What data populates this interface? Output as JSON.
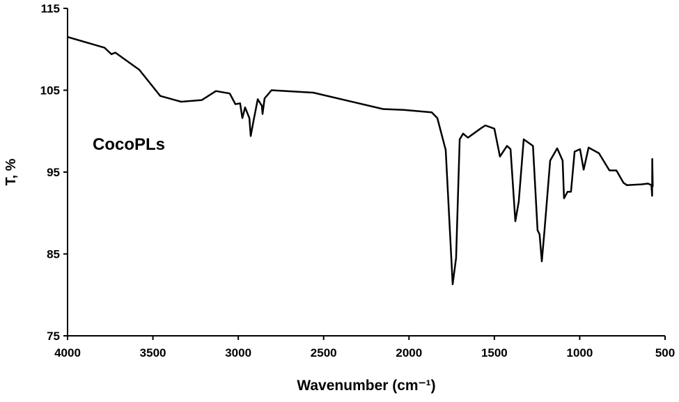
{
  "chart_data": {
    "type": "line",
    "title": "",
    "xlabel": "Wavenumber (cm⁻¹)",
    "ylabel": "T, %",
    "xlim": [
      4000,
      500
    ],
    "ylim": [
      75,
      115
    ],
    "x_reversed": true,
    "xticks": [
      4000,
      3500,
      3000,
      2500,
      2000,
      1500,
      1000,
      500
    ],
    "yticks": [
      75,
      85,
      95,
      105,
      115
    ],
    "grid": false,
    "annotation": "CocoPLs",
    "line_color": "#000000",
    "series": [
      {
        "x": [
          4000,
          3784,
          3743,
          3720,
          3580,
          3457,
          3335,
          3213,
          3131,
          3050,
          3017,
          2989,
          2976,
          2960,
          2935,
          2927,
          2912,
          2886,
          2862,
          2858,
          2846,
          2805,
          2560,
          2152,
          2030,
          1867,
          1834,
          1785,
          1744,
          1724,
          1703,
          1683,
          1655,
          1582,
          1553,
          1500,
          1467,
          1426,
          1405,
          1377,
          1357,
          1328,
          1274,
          1247,
          1235,
          1222,
          1206,
          1173,
          1132,
          1100,
          1092,
          1071,
          1051,
          1030,
          998,
          977,
          948,
          887,
          826,
          785,
          744,
          723,
          640,
          600,
          580,
          576,
          575,
          572
        ],
        "y": [
          111.5,
          110.2,
          109.4,
          109.6,
          107.5,
          104.3,
          103.6,
          103.8,
          104.9,
          104.6,
          103.3,
          103.4,
          101.6,
          102.9,
          101.6,
          99.4,
          101.1,
          103.9,
          103.1,
          102.1,
          104.0,
          105.0,
          104.7,
          102.7,
          102.6,
          102.3,
          101.6,
          97.7,
          81.3,
          84.5,
          99.0,
          99.7,
          99.2,
          100.3,
          100.7,
          100.3,
          96.9,
          98.2,
          97.8,
          89.0,
          91.4,
          99.0,
          98.2,
          87.9,
          87.4,
          84.1,
          87.9,
          96.4,
          97.9,
          96.4,
          91.8,
          92.6,
          92.6,
          97.5,
          97.8,
          95.3,
          98.0,
          97.3,
          95.2,
          95.2,
          93.7,
          93.4,
          93.5,
          93.6,
          93.4,
          92.1,
          96.6,
          93.2
        ]
      }
    ]
  }
}
